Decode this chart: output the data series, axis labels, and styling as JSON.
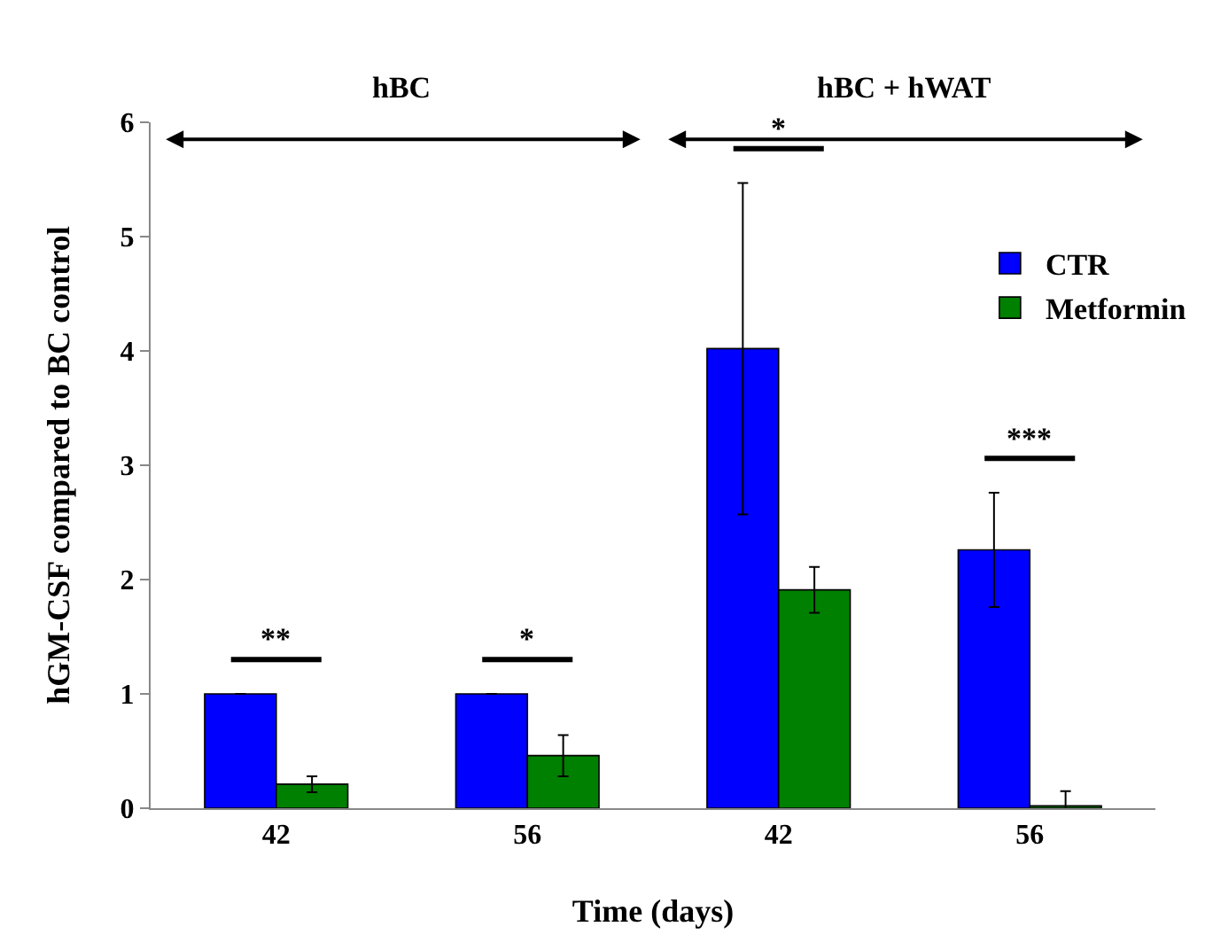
{
  "chart_data": {
    "type": "bar",
    "xlabel": "Time (days)",
    "ylabel": "hGM-CSF compared to BC control",
    "categories": [
      "42",
      "56",
      "42",
      "56"
    ],
    "series": [
      {
        "name": "CTR",
        "color": "#0000ff",
        "values": [
          1,
          1,
          4.02,
          2.26
        ],
        "errors": [
          null,
          null,
          1.45,
          0.5
        ]
      },
      {
        "name": "Metformin",
        "color": "#008000",
        "values": [
          0.21,
          0.46,
          1.91,
          0.02
        ],
        "errors": [
          0.07,
          0.18,
          0.2,
          0.13
        ]
      }
    ],
    "annotations": [
      "hBC",
      "hBC + hWAT",
      "**",
      "*",
      "*",
      "***"
    ],
    "ylim": [
      0,
      6
    ],
    "yticks": [
      0,
      1,
      2,
      3,
      4,
      5,
      6
    ],
    "grid": false,
    "legend": "top right"
  }
}
